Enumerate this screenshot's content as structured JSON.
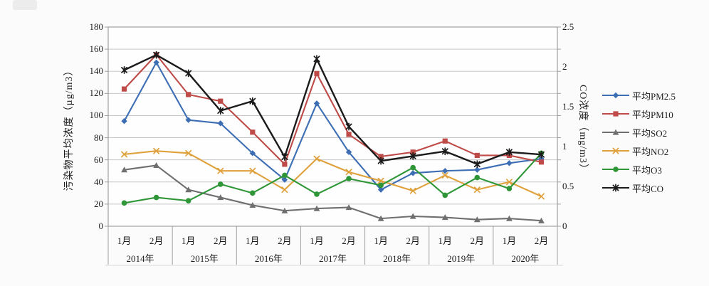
{
  "chart_data": {
    "type": "line",
    "title": "",
    "x_axis": {
      "years": [
        "2014年",
        "2015年",
        "2016年",
        "2017年",
        "2018年",
        "2019年",
        "2020年"
      ],
      "months_per_year": [
        "1月",
        "2月"
      ]
    },
    "left_axis": {
      "title": "污染物平均浓度（µg/m3）",
      "min": 0,
      "max": 180,
      "step": 20
    },
    "right_axis": {
      "title": "CO浓度（mg/m3）",
      "min": 0,
      "max": 2.5,
      "step": 0.5
    },
    "grid": true,
    "legend_position": "right",
    "series": [
      {
        "name": "平均PM2.5",
        "axis": "left",
        "color": "#3d6eb4",
        "marker": "diamond",
        "values": [
          95,
          148,
          96,
          93,
          66,
          42,
          111,
          67,
          33,
          48,
          50,
          51,
          57,
          61
        ]
      },
      {
        "name": "平均PM10",
        "axis": "left",
        "color": "#be4b48",
        "marker": "square",
        "values": [
          124,
          155,
          119,
          113,
          85,
          56,
          138,
          83,
          63,
          67,
          77,
          64,
          64,
          58
        ]
      },
      {
        "name": "平均SO2",
        "axis": "left",
        "color": "#6f6f6f",
        "marker": "triangle",
        "values": [
          51,
          55,
          33,
          26,
          19,
          14,
          16,
          17,
          7,
          9,
          8,
          6,
          7,
          5
        ]
      },
      {
        "name": "平均NO2",
        "axis": "left",
        "color": "#dfa13c",
        "marker": "x",
        "values": [
          65,
          68,
          66,
          50,
          50,
          33,
          61,
          49,
          41,
          32,
          46,
          33,
          40,
          27
        ]
      },
      {
        "name": "平均O3",
        "axis": "left",
        "color": "#2f9637",
        "marker": "circle",
        "values": [
          21,
          26,
          23,
          38,
          30,
          46,
          29,
          43,
          37,
          53,
          28,
          44,
          34,
          66
        ]
      },
      {
        "name": "平均CO",
        "axis": "right",
        "color": "#1a1a1a",
        "marker": "star",
        "values": [
          1.96,
          2.15,
          1.92,
          1.45,
          1.57,
          0.87,
          2.1,
          1.25,
          0.82,
          0.88,
          0.94,
          0.78,
          0.93,
          0.9
        ]
      }
    ],
    "style_colors": {
      "gridline": "#c6c6c6",
      "frame": "#a0a0a0",
      "plot_background": "#fefefe",
      "page_background": "#fbfbfb"
    }
  }
}
